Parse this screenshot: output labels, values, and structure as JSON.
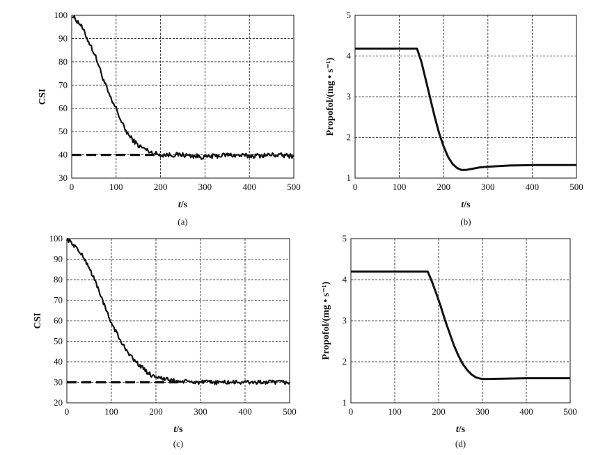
{
  "chart_data": [
    {
      "id": "a",
      "type": "line",
      "caption": "(a)",
      "ylabel": "CSI",
      "xlabel_italic": "t",
      "xlabel_unit": "/s",
      "xlim": [
        0,
        500
      ],
      "ylim": [
        30,
        100
      ],
      "xticks": [
        0,
        100,
        200,
        300,
        400,
        500
      ],
      "yticks": [
        30,
        40,
        50,
        60,
        70,
        80,
        90,
        100
      ],
      "grid": true,
      "series": [
        {
          "style": "noisy-solid",
          "noise": 1.0,
          "x": [
            0,
            10,
            20,
            30,
            40,
            50,
            60,
            70,
            80,
            90,
            100,
            110,
            120,
            130,
            140,
            150,
            160,
            170,
            180,
            190,
            200,
            220,
            250,
            300,
            350,
            400,
            450,
            500
          ],
          "y": [
            100,
            98,
            96,
            92,
            88,
            84,
            79,
            73,
            68,
            63,
            60,
            55,
            51,
            48,
            46,
            44,
            43,
            42,
            41,
            40.5,
            40,
            40,
            40,
            39,
            40,
            39.5,
            40,
            39.5
          ]
        },
        {
          "style": "dashed",
          "x": [
            0,
            200
          ],
          "y": [
            40,
            40
          ]
        }
      ]
    },
    {
      "id": "b",
      "type": "line",
      "caption": "(b)",
      "ylabel": "Propofol/(mg • s⁻¹)",
      "xlabel_italic": "t",
      "xlabel_unit": "/s",
      "xlim": [
        0,
        500
      ],
      "ylim": [
        1,
        5
      ],
      "xticks": [
        0,
        100,
        200,
        300,
        400,
        500
      ],
      "yticks": [
        1,
        2,
        3,
        4,
        5
      ],
      "grid": true,
      "series": [
        {
          "style": "solid",
          "x": [
            0,
            140,
            150,
            160,
            170,
            180,
            190,
            200,
            210,
            220,
            230,
            240,
            250,
            260,
            280,
            300,
            350,
            400,
            500
          ],
          "y": [
            4.18,
            4.18,
            3.85,
            3.4,
            2.95,
            2.5,
            2.1,
            1.78,
            1.52,
            1.35,
            1.25,
            1.2,
            1.2,
            1.22,
            1.26,
            1.28,
            1.31,
            1.32,
            1.32
          ]
        }
      ]
    },
    {
      "id": "c",
      "type": "line",
      "caption": "(c)",
      "ylabel": "CSI",
      "xlabel_italic": "t",
      "xlabel_unit": "/s",
      "xlim": [
        0,
        500
      ],
      "ylim": [
        20,
        100
      ],
      "xticks": [
        0,
        100,
        200,
        300,
        400,
        500
      ],
      "yticks": [
        20,
        30,
        40,
        50,
        60,
        70,
        80,
        90,
        100
      ],
      "grid": true,
      "series": [
        {
          "style": "noisy-solid",
          "noise": 1.0,
          "x": [
            0,
            10,
            20,
            30,
            40,
            50,
            60,
            70,
            80,
            90,
            100,
            110,
            120,
            130,
            140,
            150,
            160,
            170,
            180,
            190,
            200,
            220,
            250,
            300,
            350,
            400,
            450,
            500
          ],
          "y": [
            100,
            98,
            96,
            93,
            90,
            86,
            81,
            76,
            70,
            64,
            59,
            55,
            50,
            47,
            44,
            41,
            39,
            37,
            35,
            33.5,
            33,
            31.5,
            30.5,
            30,
            30,
            30,
            30,
            30
          ]
        },
        {
          "style": "dashed",
          "x": [
            0,
            250
          ],
          "y": [
            30,
            30
          ]
        }
      ]
    },
    {
      "id": "d",
      "type": "line",
      "caption": "(d)",
      "ylabel": "Propofol/(mg • s⁻¹)",
      "xlabel_italic": "t",
      "xlabel_unit": "/s",
      "xlim": [
        0,
        500
      ],
      "ylim": [
        1,
        5
      ],
      "xticks": [
        0,
        100,
        200,
        300,
        400,
        500
      ],
      "yticks": [
        1,
        2,
        3,
        4,
        5
      ],
      "grid": true,
      "series": [
        {
          "style": "solid",
          "x": [
            0,
            175,
            185,
            195,
            205,
            215,
            225,
            235,
            245,
            255,
            265,
            275,
            285,
            295,
            305,
            350,
            400,
            500
          ],
          "y": [
            4.2,
            4.2,
            3.95,
            3.65,
            3.35,
            3.0,
            2.7,
            2.4,
            2.15,
            1.95,
            1.8,
            1.69,
            1.62,
            1.59,
            1.58,
            1.59,
            1.6,
            1.6
          ]
        }
      ]
    }
  ]
}
